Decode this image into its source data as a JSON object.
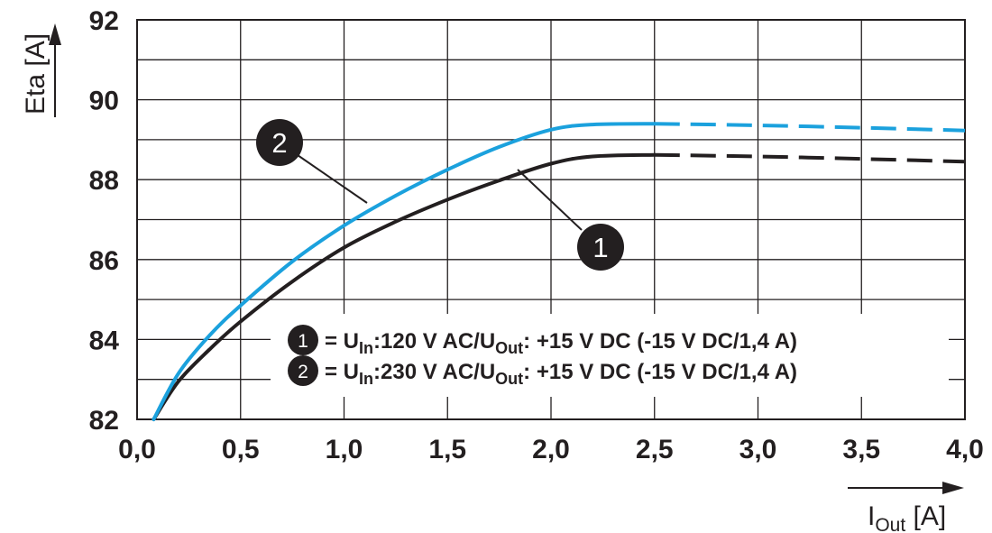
{
  "chart_data": {
    "type": "line",
    "xlabel": {
      "main": "I",
      "sub": "Out",
      "unit": " [A]"
    },
    "ylabel": "Eta [A]",
    "xlim": [
      0,
      4.0
    ],
    "ylim": [
      82,
      92
    ],
    "x_ticks": [
      "0,0",
      "0,5",
      "1,0",
      "1,5",
      "2,0",
      "2,5",
      "3,0",
      "3,5",
      "4,0"
    ],
    "y_ticks": [
      "82",
      "84",
      "86",
      "88",
      "90",
      "92"
    ],
    "x_tick_values": [
      0,
      0.5,
      1.0,
      1.5,
      2.0,
      2.5,
      3.0,
      3.5,
      4.0
    ],
    "y_tick_values": [
      82,
      84,
      86,
      88,
      90,
      92
    ],
    "grid": true,
    "legend_position": "bottom-right",
    "series": [
      {
        "name": "= UIn:120 V AC/UOut: +15 V DC (-15 V DC/1,4 A)",
        "marker": "1",
        "color": "#231f20",
        "legend": {
          "pre": "= U",
          "sub1": "In",
          "mid": ":120 V AC/U",
          "sub2": "Out",
          "post": ": +15 V DC (-15 V DC/1,4 A)"
        },
        "solid_until": 2.5,
        "x": [
          0.08,
          0.2,
          0.35,
          0.5,
          0.75,
          1.0,
          1.25,
          1.5,
          1.75,
          2.0,
          2.2,
          2.5,
          3.0,
          3.5,
          4.0
        ],
        "y": [
          82.0,
          82.95,
          83.75,
          84.45,
          85.45,
          86.3,
          86.95,
          87.5,
          87.98,
          88.4,
          88.58,
          88.62,
          88.58,
          88.52,
          88.45
        ]
      },
      {
        "name": "= UIn:230 V AC/UOut: +15 V DC (-15 V DC/1,4 A)",
        "marker": "2",
        "color": "#1ba1dd",
        "legend": {
          "pre": "= U",
          "sub1": "In",
          "mid": ":230 V AC/U",
          "sub2": "Out",
          "post": ": +15 V DC (-15 V DC/1,4 A)"
        },
        "solid_until": 2.5,
        "x": [
          0.08,
          0.2,
          0.35,
          0.5,
          0.75,
          1.0,
          1.25,
          1.5,
          1.75,
          2.0,
          2.2,
          2.5,
          3.0,
          3.5,
          4.0
        ],
        "y": [
          82.0,
          83.15,
          84.1,
          84.85,
          85.95,
          86.85,
          87.6,
          88.25,
          88.82,
          89.25,
          89.38,
          89.4,
          89.36,
          89.3,
          89.23
        ]
      }
    ]
  }
}
